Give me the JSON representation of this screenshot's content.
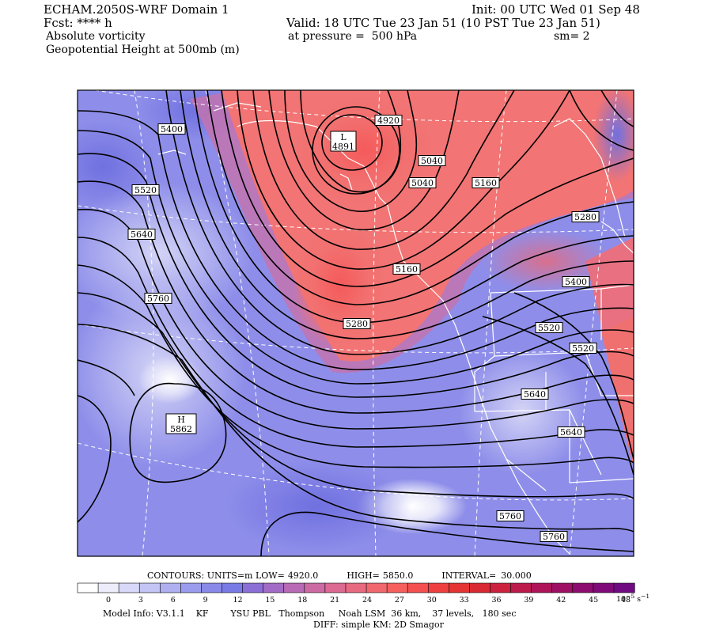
{
  "header": {
    "model_title": "ECHAM.2050S-WRF Domain 1",
    "forecast": "Fcst: **** h",
    "field1": "Absolute vorticity",
    "field2": "Geopotential Height at 500mb (m)",
    "init": "Init: 00 UTC Wed 01 Sep 48",
    "valid": "Valid: 18 UTC Tue 23 Jan 51 (10 PST Tue 23 Jan 51)",
    "pressure": "at pressure =  500 hPa",
    "smoothing": "sm= 2"
  },
  "contour_labels": [
    "4920",
    "5040",
    "5040",
    "5160",
    "5280",
    "5400",
    "5520",
    "5640",
    "5760",
    "5160",
    "5280",
    "5400",
    "5520",
    "5520",
    "5640",
    "5640",
    "5760",
    "5760"
  ],
  "centers": [
    {
      "letter": "L",
      "value": "4891"
    },
    {
      "letter": "H",
      "value": "5862"
    }
  ],
  "contours_info": {
    "prefix": "CONTOURS:  UNITS=m  LOW=",
    "low": "4920.0",
    "high_label": "HIGH=",
    "high": "5850.0",
    "interval_label": "INTERVAL=",
    "interval": "30.000"
  },
  "colorbar": {
    "ticks": [
      "0",
      "3",
      "6",
      "9",
      "12",
      "15",
      "18",
      "21",
      "24",
      "27",
      "30",
      "33",
      "36",
      "39",
      "42",
      "45",
      "48"
    ],
    "units_base": "10",
    "units_exp": "−5",
    "units_tail": "s",
    "units_tail_exp": "−1",
    "colors": [
      "#ffffff",
      "#ececfb",
      "#d8d8f8",
      "#c4c4f5",
      "#b0b0f1",
      "#9c9cee",
      "#8989ea",
      "#7a7ae6",
      "#8c6fd6",
      "#a26cc6",
      "#b86ab6",
      "#cc6aa4",
      "#dc6a92",
      "#e86a80",
      "#f0686e",
      "#f5605e",
      "#f55050",
      "#ef4040",
      "#e53434",
      "#d92a34",
      "#cc2240",
      "#bd1a4c",
      "#ae1458",
      "#9e1064",
      "#8e0c70",
      "#800a78",
      "#700a80"
    ]
  },
  "footer": {
    "line1": "Model Info: V3.1.1    KF        YSU PBL   Thompson     Noah LSM  36 km,    37 levels,   180 sec",
    "line2": "DIFF: simple KM: 2D Smagor"
  }
}
